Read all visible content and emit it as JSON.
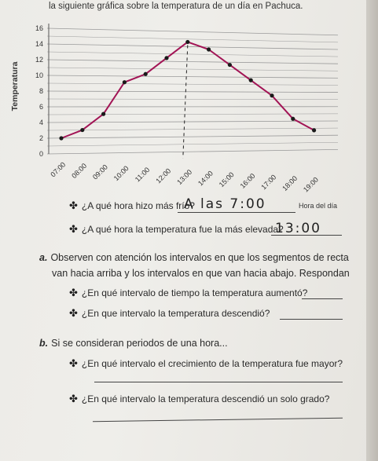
{
  "header": {
    "text": "la siguiente gráfica sobre la temperatura de un día en Pachuca."
  },
  "chart_data": {
    "type": "line",
    "ylabel": "Temperatura",
    "xlabel": "Hora del día",
    "ylim": [
      0,
      16
    ],
    "yticks": [
      "0",
      "2",
      "4",
      "6",
      "8",
      "10",
      "12",
      "14",
      "16"
    ],
    "categories": [
      "07:00",
      "08:00",
      "09:00",
      "10:00",
      "11:00",
      "12:00",
      "13:00",
      "14:00",
      "15:00",
      "16:00",
      "17:00",
      "18:00",
      "19:00"
    ],
    "values": [
      2,
      3,
      5,
      9,
      10,
      12,
      14,
      13,
      11,
      9,
      7,
      4,
      2.5
    ],
    "grid": true,
    "annotation": "dashed vertical line from the peak at 13:00"
  },
  "q1": {
    "text": "¿A qué hora hizo más frío?",
    "answer": "A las 7:00"
  },
  "q2": {
    "text": "¿A qué hora la temperatura fue la más elevada?",
    "answer": "13:00"
  },
  "sec_a": {
    "letter": "a.",
    "text1": "Observen con atención los intervalos en que los segmentos de recta",
    "text2": "van hacia arriba y los intervalos en que van hacia abajo. Respondan",
    "q1": "¿En qué intervalo de tiempo la temperatura aumentó?",
    "q2": "¿En que intervalo la temperatura descendió?"
  },
  "sec_b": {
    "letter": "b.",
    "text": "Si se consideran periodos de una hora...",
    "q1": "¿En qué intervalo el crecimiento de la temperatura fue mayor?",
    "q2": "¿En qué intervalo la temperatura descendió un solo grado?"
  }
}
